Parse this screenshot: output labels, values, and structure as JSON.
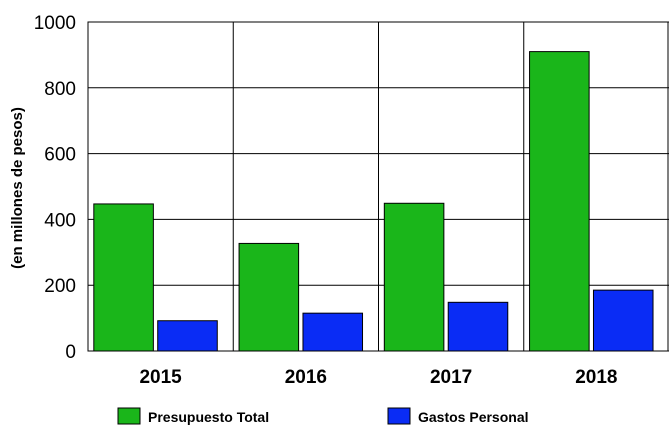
{
  "chart_data": {
    "type": "bar",
    "categories": [
      "2015",
      "2016",
      "2017",
      "2018"
    ],
    "series": [
      {
        "name": "Presupuesto Total",
        "values": [
          447,
          327,
          449,
          910
        ],
        "color": "#1ab61a"
      },
      {
        "name": "Gastos Personal",
        "values": [
          92,
          115,
          148,
          185
        ],
        "color": "#0a2cf5"
      }
    ],
    "ylabel": "(en millones de pesos)",
    "ylim": [
      0,
      1000
    ],
    "yticks": [
      "0",
      "200",
      "400",
      "600",
      "800",
      "1000"
    ],
    "grid": true,
    "legend_position": "bottom"
  }
}
